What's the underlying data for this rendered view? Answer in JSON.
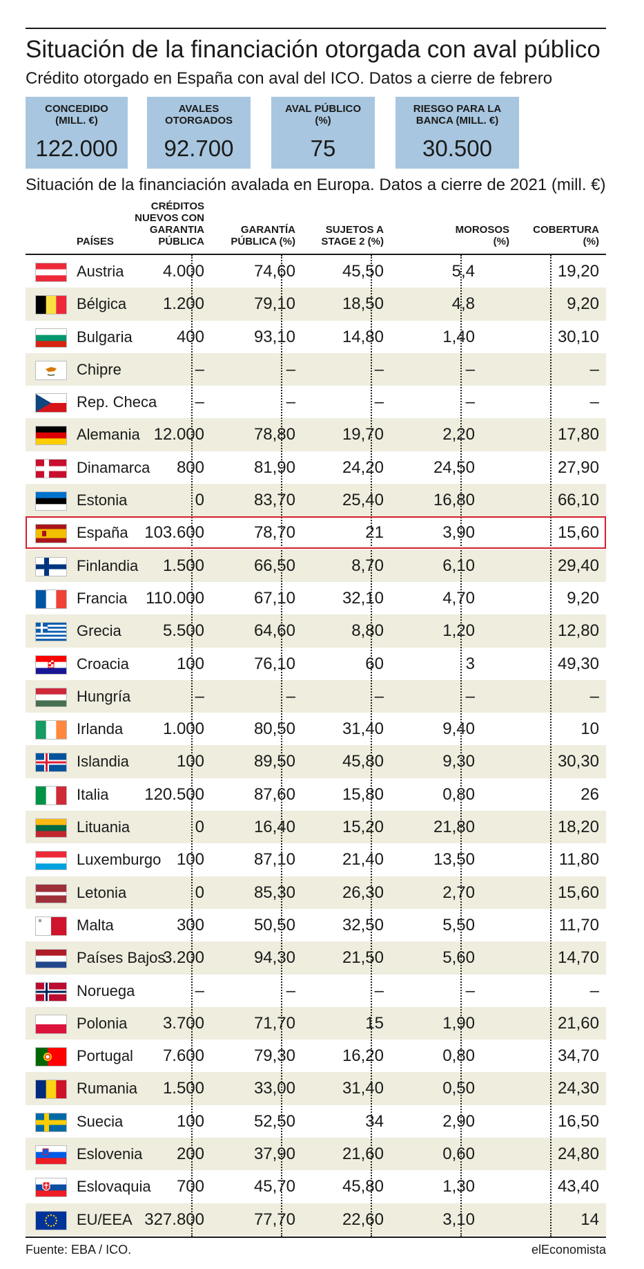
{
  "header": {
    "title": "Situación de la financiación otorgada con aval público",
    "subtitle": "Crédito otorgado en España con aval del ICO. Datos a cierre de febrero"
  },
  "summary": [
    {
      "label": "CONCEDIDO\n(MILL. €)",
      "value": "122.000"
    },
    {
      "label": "AVALES\nOTORGADOS",
      "value": "92.700"
    },
    {
      "label": "AVAL PÚBLICO\n(%)",
      "value": "75"
    },
    {
      "label": "RIESGO PARA LA\nBANCA (MILL. €)",
      "value": "30.500"
    }
  ],
  "table": {
    "caption": "Situación de la financiación avalada en Europa. Datos a cierre de 2021 (mill. €)",
    "columns": [
      "PAÍSES",
      "CRÉDITOS\nNUEVOS CON\nGARANTIA\nPÚBLICA",
      "GARANTÍA\nPÚBLICA (%)",
      "SUJETOS A\nSTAGE 2 (%)",
      "MOROSOS\n(%)",
      "COBERTURA\n(%)"
    ],
    "highlight_color": "#d3202a",
    "stripe_color": "#efedde",
    "box_color": "#a8c6df"
  },
  "chart_data": {
    "type": "table",
    "title": "Situación de la financiación avalada en Europa. Datos a cierre de 2021 (mill. €)",
    "highlighted_row": "España",
    "rows": [
      {
        "country": "Austria",
        "flag": "austria-flag",
        "values": [
          "4.000",
          "74,60",
          "45,50",
          "5,4",
          "19,20"
        ]
      },
      {
        "country": "Bélgica",
        "flag": "belgium-flag",
        "values": [
          "1.200",
          "79,10",
          "18,50",
          "4,8",
          "9,20"
        ]
      },
      {
        "country": "Bulgaria",
        "flag": "bulgaria-flag",
        "values": [
          "400",
          "93,10",
          "14,80",
          "1,40",
          "30,10"
        ]
      },
      {
        "country": "Chipre",
        "flag": "cyprus-flag",
        "values": [
          "–",
          "–",
          "–",
          "–",
          "–"
        ]
      },
      {
        "country": "Rep. Checa",
        "flag": "czech-flag",
        "values": [
          "–",
          "–",
          "–",
          "–",
          "–"
        ]
      },
      {
        "country": "Alemania",
        "flag": "germany-flag",
        "values": [
          "12.000",
          "78,80",
          "19,70",
          "2,20",
          "17,80"
        ]
      },
      {
        "country": "Dinamarca",
        "flag": "denmark-flag",
        "values": [
          "800",
          "81,90",
          "24,20",
          "24,50",
          "27,90"
        ]
      },
      {
        "country": "Estonia",
        "flag": "estonia-flag",
        "values": [
          "0",
          "83,70",
          "25,40",
          "16,80",
          "66,10"
        ]
      },
      {
        "country": "España",
        "flag": "spain-flag",
        "values": [
          "103.600",
          "78,70",
          "21",
          "3,90",
          "15,60"
        ]
      },
      {
        "country": "Finlandia",
        "flag": "finland-flag",
        "values": [
          "1.500",
          "66,50",
          "8,70",
          "6,10",
          "29,40"
        ]
      },
      {
        "country": "Francia",
        "flag": "france-flag",
        "values": [
          "110.000",
          "67,10",
          "32,10",
          "4,70",
          "9,20"
        ]
      },
      {
        "country": "Grecia",
        "flag": "greece-flag",
        "values": [
          "5.500",
          "64,60",
          "8,80",
          "1,20",
          "12,80"
        ]
      },
      {
        "country": "Croacia",
        "flag": "croatia-flag",
        "values": [
          "100",
          "76,10",
          "60",
          "3",
          "49,30"
        ]
      },
      {
        "country": "Hungría",
        "flag": "hungary-flag",
        "values": [
          "–",
          "–",
          "–",
          "–",
          "–"
        ]
      },
      {
        "country": "Irlanda",
        "flag": "ireland-flag",
        "values": [
          "1.000",
          "80,50",
          "31,40",
          "9,40",
          "10"
        ]
      },
      {
        "country": "Islandia",
        "flag": "iceland-flag",
        "values": [
          "100",
          "89,50",
          "45,80",
          "9,30",
          "30,30"
        ]
      },
      {
        "country": "Italia",
        "flag": "italy-flag",
        "values": [
          "120.500",
          "87,60",
          "15,80",
          "0,80",
          "26"
        ]
      },
      {
        "country": "Lituania",
        "flag": "lithuania-flag",
        "values": [
          "0",
          "16,40",
          "15,20",
          "21,80",
          "18,20"
        ]
      },
      {
        "country": "Luxemburgo",
        "flag": "luxembourg-flag",
        "values": [
          "100",
          "87,10",
          "21,40",
          "13,50",
          "11,80"
        ]
      },
      {
        "country": "Letonia",
        "flag": "latvia-flag",
        "values": [
          "0",
          "85,30",
          "26,30",
          "2,70",
          "15,60"
        ]
      },
      {
        "country": "Malta",
        "flag": "malta-flag",
        "values": [
          "300",
          "50,50",
          "32,50",
          "5,50",
          "11,70"
        ]
      },
      {
        "country": "Países Bajos",
        "flag": "netherlands-flag",
        "values": [
          "3.200",
          "94,30",
          "21,50",
          "5,60",
          "14,70"
        ]
      },
      {
        "country": "Noruega",
        "flag": "norway-flag",
        "values": [
          "–",
          "–",
          "–",
          "–",
          "–"
        ]
      },
      {
        "country": "Polonia",
        "flag": "poland-flag",
        "values": [
          "3.700",
          "71,70",
          "15",
          "1,90",
          "21,60"
        ]
      },
      {
        "country": "Portugal",
        "flag": "portugal-flag",
        "values": [
          "7.600",
          "79,30",
          "16,20",
          "0,80",
          "34,70"
        ]
      },
      {
        "country": "Rumania",
        "flag": "romania-flag",
        "values": [
          "1.500",
          "33,00",
          "31,40",
          "0,50",
          "24,30"
        ]
      },
      {
        "country": "Suecia",
        "flag": "sweden-flag",
        "values": [
          "100",
          "52,50",
          "34",
          "2,90",
          "16,50"
        ]
      },
      {
        "country": "Eslovenia",
        "flag": "slovenia-flag",
        "values": [
          "200",
          "37,90",
          "21,60",
          "0,60",
          "24,80"
        ]
      },
      {
        "country": "Eslovaquia",
        "flag": "slovakia-flag",
        "values": [
          "700",
          "45,70",
          "45,80",
          "1,30",
          "43,40"
        ]
      },
      {
        "country": "EU/EEA",
        "flag": "eu-flag",
        "values": [
          "327.800",
          "77,70",
          "22,60",
          "3,10",
          "14"
        ]
      }
    ]
  },
  "footer": {
    "source": "Fuente: EBA / ICO.",
    "brand": "elEconomista"
  }
}
